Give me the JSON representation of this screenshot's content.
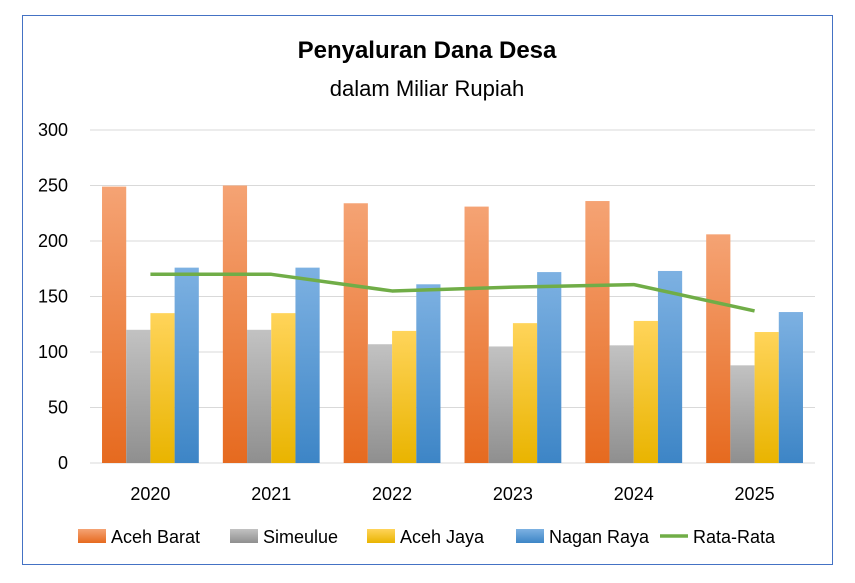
{
  "chart_data": {
    "type": "bar",
    "title": "Penyaluran Dana Desa",
    "subtitle": "dalam Miliar Rupiah",
    "xlabel": "",
    "ylabel": "",
    "ylim": [
      0,
      300
    ],
    "yticks": [
      "0",
      "50",
      "100",
      "150",
      "200",
      "250",
      "300"
    ],
    "grid": true,
    "legend_position": "bottom",
    "categories": [
      "2020",
      "2021",
      "2022",
      "2023",
      "2024",
      "2025"
    ],
    "series": [
      {
        "name": "Aceh Barat",
        "type": "bar",
        "color": "#ed7d31",
        "values": [
          249,
          250,
          234,
          231,
          236,
          206
        ]
      },
      {
        "name": "Simeulue",
        "type": "bar",
        "color": "#a5a5a5",
        "values": [
          120,
          120,
          107,
          105,
          106,
          88
        ]
      },
      {
        "name": "Aceh Jaya",
        "type": "bar",
        "color": "#ffc000",
        "values": [
          135,
          135,
          119,
          126,
          128,
          118
        ]
      },
      {
        "name": "Nagan Raya",
        "type": "bar",
        "color": "#5b9bd5",
        "values": [
          176,
          176,
          161,
          172,
          173,
          136
        ]
      },
      {
        "name": "Rata-Rata",
        "type": "line",
        "color": "#70ad47",
        "values": [
          170,
          170,
          155,
          158.5,
          160.75,
          137
        ]
      }
    ]
  }
}
